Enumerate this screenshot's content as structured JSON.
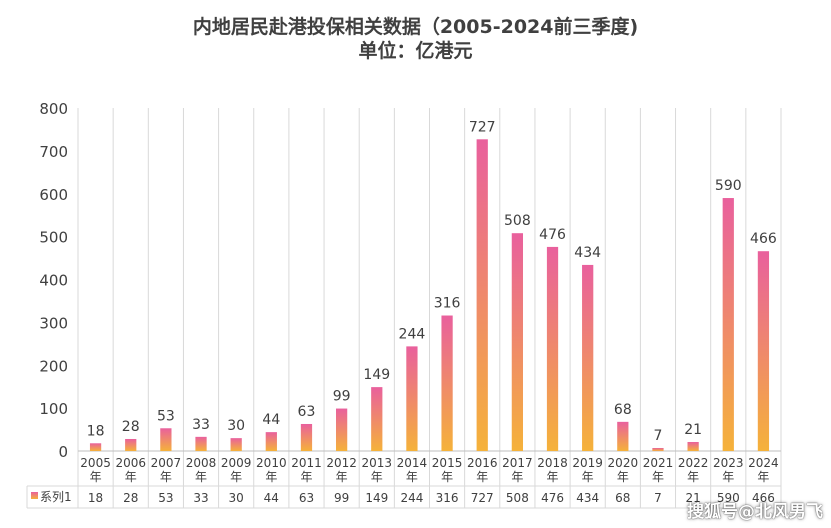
{
  "chart_data": {
    "type": "bar",
    "title": "内地居民赴港投保相关数据（2005-2024前三季度)",
    "subtitle": "单位：亿港元",
    "categories": [
      "2005年",
      "2006年",
      "2007年",
      "2008年",
      "2009年",
      "2010年",
      "2011年",
      "2012年",
      "2013年",
      "2014年",
      "2015年",
      "2016年",
      "2017年",
      "2018年",
      "2019年",
      "2020年",
      "2021年",
      "2022年",
      "2023年",
      "2024年"
    ],
    "series": [
      {
        "name": "系列1",
        "values": [
          18,
          28,
          53,
          33,
          30,
          44,
          63,
          99,
          149,
          244,
          316,
          727,
          508,
          476,
          434,
          68,
          7,
          21,
          590,
          466
        ]
      }
    ],
    "ylim": [
      0,
      800
    ],
    "yticks": [
      0,
      100,
      200,
      300,
      400,
      500,
      600,
      700,
      800
    ],
    "xlabel": "",
    "ylabel": "",
    "grid": "vertical",
    "data_table": true,
    "colors": {
      "bar_top": "#e9609d",
      "bar_bottom": "#f5b23a",
      "text": "#404040",
      "grid": "#d9d9d9"
    }
  },
  "watermark": "搜狐号@北风男飞"
}
